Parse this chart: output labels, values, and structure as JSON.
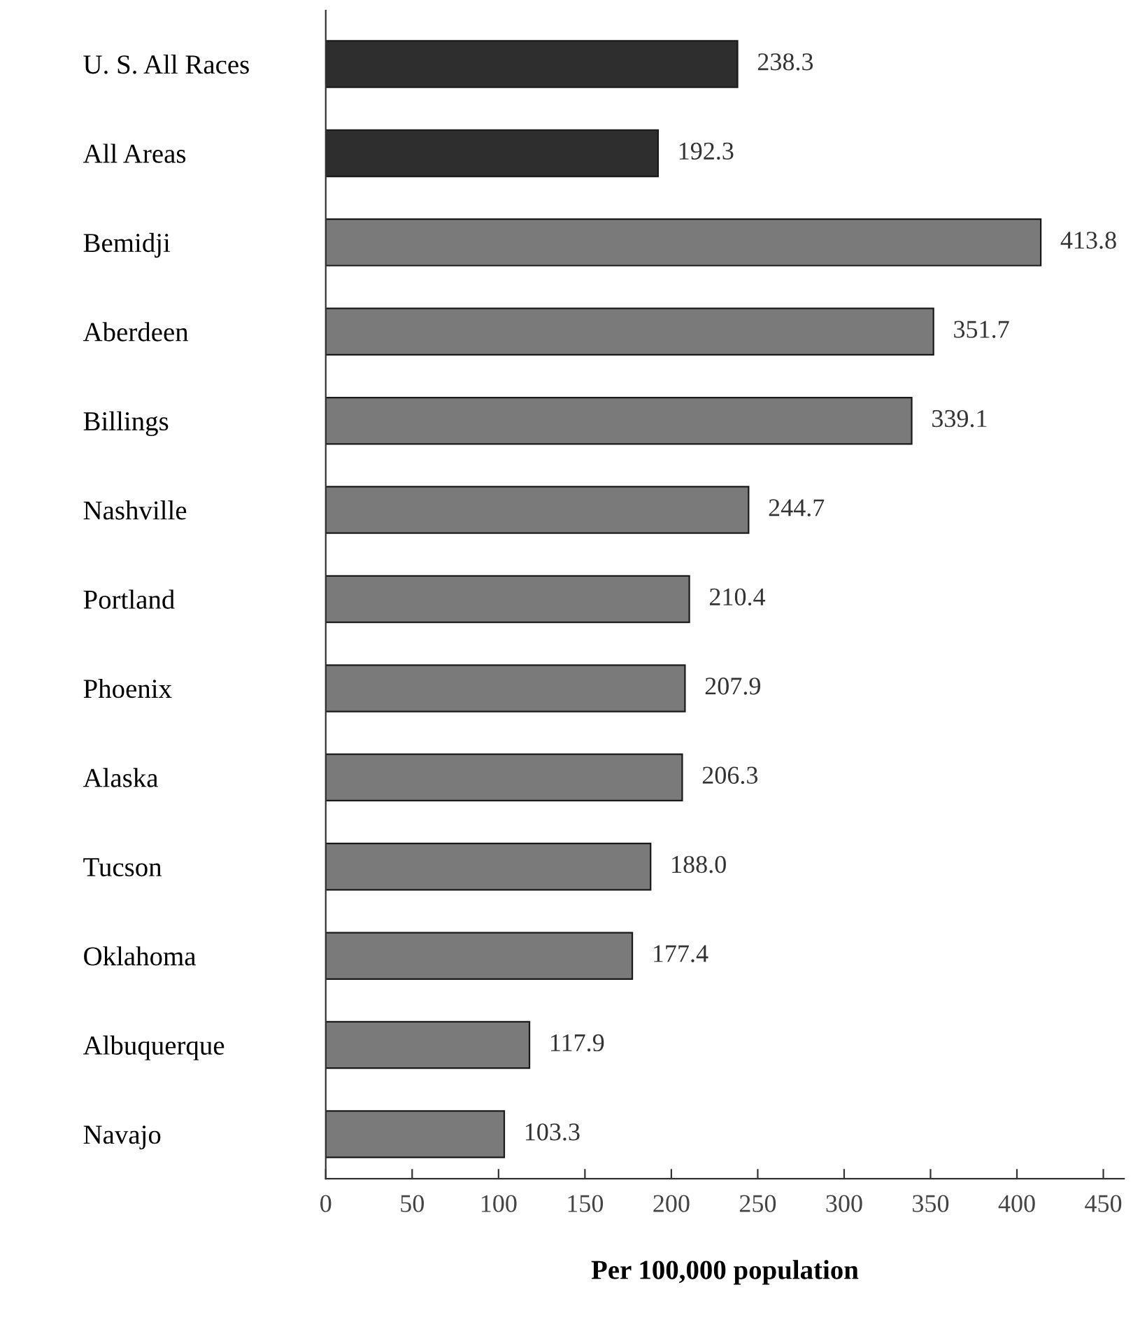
{
  "chart_data": {
    "type": "bar",
    "orientation": "horizontal",
    "xlabel": "Per 100,000 population",
    "categories": [
      "U. S. All Races",
      "All Areas",
      "Bemidji",
      "Aberdeen",
      "Billings",
      "Nashville",
      "Portland",
      "Phoenix",
      "Alaska",
      "Tucson",
      "Oklahoma",
      "Albuquerque",
      "Navajo"
    ],
    "values": [
      238.3,
      192.3,
      413.8,
      351.7,
      339.1,
      244.7,
      210.4,
      207.9,
      206.3,
      188.0,
      177.4,
      117.9,
      103.3
    ],
    "value_labels": [
      "238.3",
      "192.3",
      "413.8",
      "351.7",
      "339.1",
      "244.7",
      "210.4",
      "207.9",
      "206.3",
      "188.0",
      "177.4",
      "117.9",
      "103.3"
    ],
    "colors": [
      "#2e2e2e",
      "#2e2e2e",
      "#7a7a7a",
      "#7a7a7a",
      "#7a7a7a",
      "#7a7a7a",
      "#7a7a7a",
      "#7a7a7a",
      "#7a7a7a",
      "#7a7a7a",
      "#7a7a7a",
      "#7a7a7a",
      "#7a7a7a"
    ],
    "xlim": [
      0,
      462
    ],
    "xticks": [
      0,
      50,
      100,
      150,
      200,
      250,
      300,
      350,
      400,
      450
    ],
    "grid": false
  }
}
